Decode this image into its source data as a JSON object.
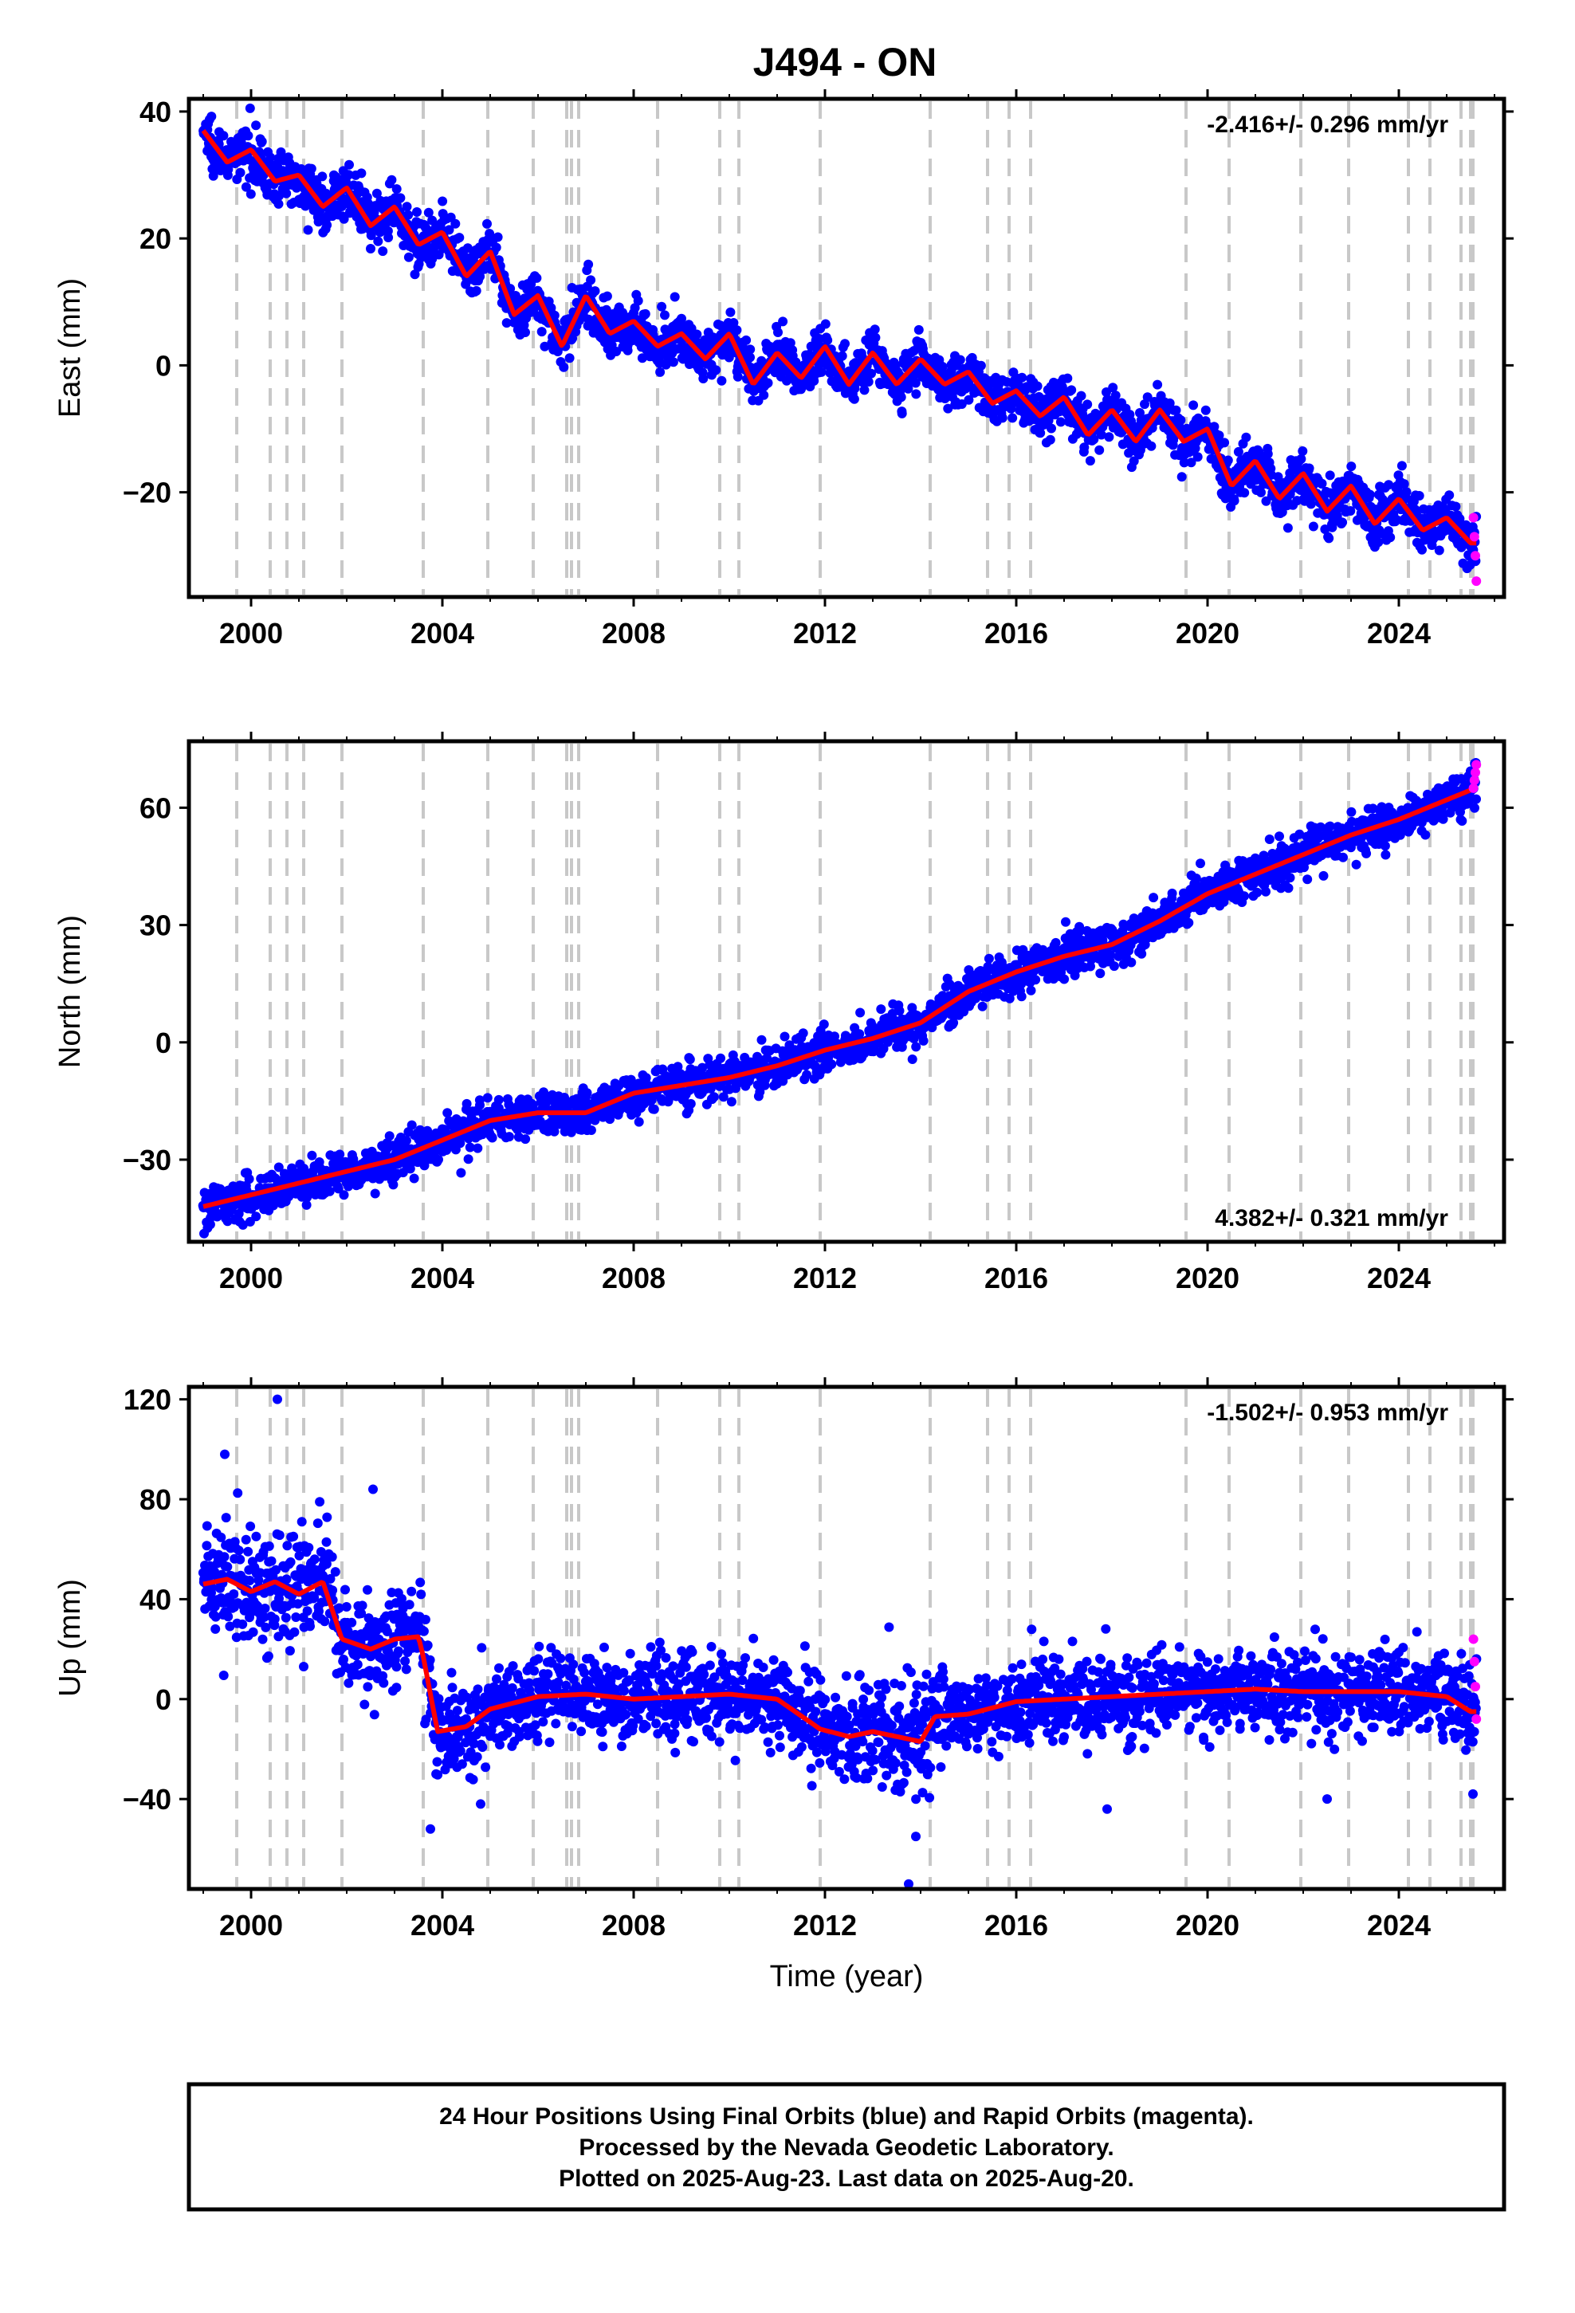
{
  "figure": {
    "title": "J494 - ON",
    "footer_lines": [
      "24 Hour Positions Using Final Orbits (blue) and Rapid Orbits (magenta).",
      "Processed by the Nevada Geodetic Laboratory.",
      "Plotted on 2025-Aug-23. Last data on 2025-Aug-20."
    ],
    "colors": {
      "final_orbits": "#0000ff",
      "rapid_orbits": "#ff00ff",
      "model": "#ff0000",
      "step_lines": "#c8c8c8",
      "frame": "#000000"
    }
  },
  "chart_data": [
    {
      "type": "scatter",
      "panel": "east",
      "title": "J494 - ON",
      "xlabel": "",
      "ylabel": "East (mm)",
      "rate": "-2.416+/- 0.296 mm/yr",
      "rate_position": "top-right",
      "xlim": [
        1998.7,
        2026.2
      ],
      "ylim": [
        -36.5,
        42
      ],
      "xticks": [
        2000,
        2004,
        2008,
        2012,
        2016,
        2020,
        2024
      ],
      "yticks": [
        -20,
        0,
        20,
        40
      ],
      "step_epochs": [
        1999.7,
        2000.4,
        2000.75,
        2001.1,
        2001.9,
        2003.6,
        2004.95,
        2005.9,
        2006.6,
        2006.7,
        2006.85,
        2008.5,
        2009.8,
        2010.2,
        2011.9,
        2014.2,
        2015.4,
        2015.85,
        2016.3,
        2019.55,
        2020.45,
        2021.95,
        2022.95,
        2024.2,
        2024.65,
        2025.3,
        2025.5,
        2025.55
      ],
      "model_shape": {
        "rate": -2.416,
        "start": 1999.0,
        "end": 2025.62,
        "value_at_start": 37,
        "annual_amplitude": 3.0,
        "scatter_sigma": 2.0
      },
      "series_model": {
        "x": [
          1999.0,
          1999.5,
          2000.0,
          2000.5,
          2001.0,
          2001.5,
          2002.0,
          2002.5,
          2003.0,
          2003.5,
          2004.0,
          2004.5,
          2005.0,
          2005.5,
          2006.0,
          2006.5,
          2007.0,
          2007.5,
          2008.0,
          2008.5,
          2009.0,
          2009.5,
          2010.0,
          2010.5,
          2011.0,
          2011.5,
          2012.0,
          2012.5,
          2013.0,
          2013.5,
          2014.0,
          2014.5,
          2015.0,
          2015.5,
          2016.0,
          2016.5,
          2017.0,
          2017.5,
          2018.0,
          2018.5,
          2019.0,
          2019.5,
          2020.0,
          2020.5,
          2021.0,
          2021.5,
          2022.0,
          2022.5,
          2023.0,
          2023.5,
          2024.0,
          2024.5,
          2025.0,
          2025.5
        ],
        "y": [
          37,
          32,
          34,
          29,
          30,
          25,
          28,
          22,
          25,
          19,
          21,
          14,
          18,
          8,
          11,
          3,
          11,
          5,
          7,
          3,
          5,
          1,
          5,
          -3,
          2,
          -2,
          3,
          -3,
          2,
          -3,
          1,
          -3,
          -1,
          -6,
          -4,
          -8,
          -5,
          -11,
          -7,
          -12,
          -7,
          -12,
          -10,
          -19,
          -15,
          -21,
          -17,
          -23,
          -19,
          -25,
          -21,
          -26,
          -24,
          -28
        ]
      },
      "rapid_points": {
        "x": [
          2025.56,
          2025.58,
          2025.6,
          2025.62
        ],
        "y": [
          -24,
          -27,
          -30,
          -34
        ]
      }
    },
    {
      "type": "scatter",
      "panel": "north",
      "xlabel": "",
      "ylabel": "North (mm)",
      "rate": "4.382+/- 0.321 mm/yr",
      "rate_position": "bottom-right",
      "xlim": [
        1998.7,
        2026.2
      ],
      "ylim": [
        -51,
        77
      ],
      "xticks": [
        2000,
        2004,
        2008,
        2012,
        2016,
        2020,
        2024
      ],
      "yticks": [
        -30,
        0,
        30,
        60
      ],
      "step_epochs": [
        1999.7,
        2000.4,
        2000.75,
        2001.1,
        2001.9,
        2003.6,
        2004.95,
        2005.9,
        2006.6,
        2006.7,
        2006.85,
        2008.5,
        2009.8,
        2010.2,
        2011.9,
        2014.2,
        2015.4,
        2015.85,
        2016.3,
        2019.55,
        2020.45,
        2021.95,
        2022.95,
        2024.2,
        2024.65,
        2025.3,
        2025.5,
        2025.55
      ],
      "model_shape": {
        "rate": 4.382,
        "start": 1999.0,
        "end": 2025.62,
        "value_at_start": -42,
        "annual_amplitude": 1.5,
        "scatter_sigma": 2.6
      },
      "series_model": {
        "x": [
          1999.0,
          2000.0,
          2001.0,
          2002.0,
          2003.0,
          2004.0,
          2005.0,
          2006.0,
          2007.0,
          2008.0,
          2009.0,
          2010.0,
          2011.0,
          2012.0,
          2013.0,
          2014.0,
          2015.0,
          2016.0,
          2017.0,
          2018.0,
          2019.0,
          2020.0,
          2021.0,
          2022.0,
          2023.0,
          2024.0,
          2025.0,
          2025.6
        ],
        "y": [
          -42,
          -39,
          -36,
          -33,
          -30,
          -25,
          -20,
          -18,
          -18,
          -13,
          -11,
          -9,
          -6,
          -2,
          1,
          5,
          13,
          18,
          22,
          25,
          31,
          38,
          43,
          48,
          53,
          57,
          62,
          65
        ]
      },
      "rapid_points": {
        "x": [
          2025.56,
          2025.58,
          2025.6,
          2025.62
        ],
        "y": [
          65,
          67,
          69,
          71
        ]
      }
    },
    {
      "type": "scatter",
      "panel": "up",
      "xlabel": "Time (year)",
      "ylabel": "Up (mm)",
      "rate": "-1.502+/- 0.953 mm/yr",
      "rate_position": "top-right",
      "xlim": [
        1998.7,
        2026.2
      ],
      "ylim": [
        -76,
        125
      ],
      "xticks": [
        2000,
        2004,
        2008,
        2012,
        2016,
        2020,
        2024
      ],
      "yticks": [
        -40,
        0,
        40,
        80,
        120
      ],
      "step_epochs": [
        1999.7,
        2000.4,
        2000.75,
        2001.1,
        2001.9,
        2003.6,
        2004.95,
        2005.9,
        2006.6,
        2006.7,
        2006.85,
        2008.5,
        2009.8,
        2010.2,
        2011.9,
        2014.2,
        2015.4,
        2015.85,
        2016.3,
        2019.55,
        2020.45,
        2021.95,
        2022.95,
        2024.2,
        2024.65,
        2025.3,
        2025.5,
        2025.55
      ],
      "model_shape": {
        "rate": -1.502,
        "start": 1999.0,
        "end": 2025.62,
        "annual_amplitude": 4.0,
        "scatter_sigma": 8.5
      },
      "series_model": {
        "x": [
          1999.0,
          1999.5,
          2000.0,
          2000.5,
          2001.0,
          2001.5,
          2001.9,
          2002.5,
          2003.0,
          2003.5,
          2003.6,
          2003.9,
          2004.5,
          2005.0,
          2006.0,
          2007.0,
          2008.0,
          2009.0,
          2010.0,
          2011.0,
          2011.9,
          2012.5,
          2013.0,
          2013.5,
          2014.0,
          2014.3,
          2015.0,
          2016.0,
          2017.0,
          2018.0,
          2019.0,
          2020.0,
          2021.0,
          2022.0,
          2023.0,
          2024.0,
          2025.0,
          2025.5
        ],
        "y": [
          46,
          48,
          43,
          47,
          42,
          47,
          24,
          20,
          24,
          25,
          17,
          -13,
          -11,
          -4,
          1,
          2,
          0,
          1,
          2,
          0,
          -12,
          -15,
          -13,
          -15,
          -17,
          -7,
          -6,
          -1,
          0,
          1,
          2,
          3,
          4,
          3,
          3,
          3,
          1,
          -5
        ]
      },
      "outliers": {
        "x": [
          1999.45,
          2000.55,
          2001.1,
          2002.55,
          2003.75,
          2013.75,
          2013.9,
          2004.8,
          2017.9,
          2022.5,
          2025.55
        ],
        "y": [
          98,
          120,
          13,
          84,
          -52,
          -74,
          -55,
          -42,
          -44,
          -40,
          -38
        ]
      },
      "rapid_points": {
        "x": [
          2025.56,
          2025.58,
          2025.6,
          2025.62
        ],
        "y": [
          24,
          15,
          5,
          -8
        ]
      }
    }
  ]
}
